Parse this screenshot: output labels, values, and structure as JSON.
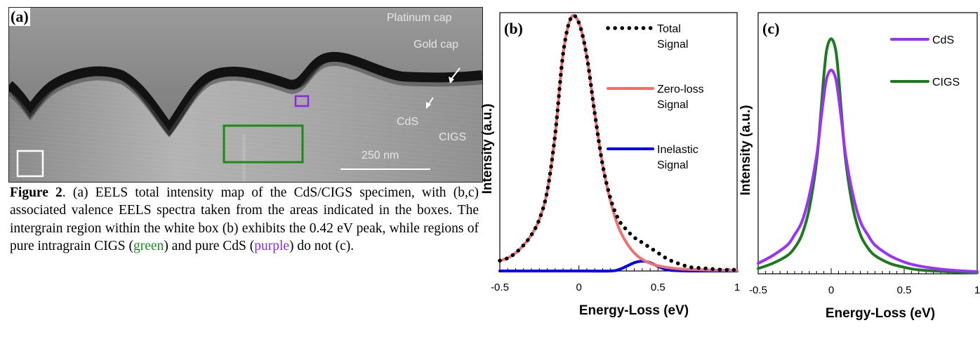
{
  "panel_a": {
    "tag": "(a)",
    "labels": {
      "platinum": "Platinum cap",
      "gold": "Gold cap",
      "cds": "CdS",
      "cigs": "CIGS",
      "scale": "250 nm"
    },
    "box_colors": {
      "white": "#ffffff",
      "green": "#1a8a1a",
      "purple": "#8a2be2"
    }
  },
  "caption": {
    "label": "Figure 2",
    "t1": ". (a) EELS total intensity map of the CdS/CIGS specimen, with (b,c) associated valence EELS spectra taken from the areas indicated in the boxes. The intergrain region within the white box (b) exhibits the 0.42 eV peak, while regions of pure intragrain CIGS (",
    "green_word": "green",
    "t2": ") and pure CdS (",
    "purple_word": "purple",
    "t3": ") do not (c)."
  },
  "chart_data": [
    {
      "type": "line",
      "panel": "(b)",
      "xlabel": "Energy-Loss (eV)",
      "ylabel": "Intensity (a.u.)",
      "xlim": [
        -0.5,
        1.0
      ],
      "ylim": [
        0,
        1.0
      ],
      "x_ticks": [
        "-0.5",
        "0",
        "0.5",
        "1"
      ],
      "x_tick_values": [
        -0.5,
        0,
        0.5,
        1.0
      ],
      "grid": false,
      "legend_position": "top-right",
      "series": [
        {
          "name": "Total Signal",
          "legend": [
            "Total",
            "Signal"
          ],
          "style": "dotted",
          "color": "#000000",
          "x": [
            -0.5,
            -0.45,
            -0.4,
            -0.35,
            -0.3,
            -0.25,
            -0.2,
            -0.15,
            -0.1,
            -0.05,
            0.0,
            0.05,
            0.1,
            0.15,
            0.2,
            0.25,
            0.3,
            0.35,
            0.4,
            0.45,
            0.5,
            0.55,
            0.6,
            0.65,
            0.7,
            0.8,
            0.9,
            1.0
          ],
          "y": [
            0.04,
            0.05,
            0.07,
            0.1,
            0.14,
            0.2,
            0.31,
            0.53,
            0.84,
            0.98,
            0.96,
            0.83,
            0.61,
            0.41,
            0.28,
            0.2,
            0.16,
            0.13,
            0.11,
            0.09,
            0.07,
            0.05,
            0.035,
            0.025,
            0.015,
            0.01,
            0.005,
            0.005
          ]
        },
        {
          "name": "Zero-loss Signal",
          "legend": [
            "Zero-loss",
            "Signal"
          ],
          "style": "solid",
          "color": "#f07070",
          "x": [
            -0.5,
            -0.45,
            -0.4,
            -0.35,
            -0.3,
            -0.25,
            -0.2,
            -0.15,
            -0.1,
            -0.05,
            0.0,
            0.05,
            0.1,
            0.15,
            0.2,
            0.25,
            0.3,
            0.35,
            0.4,
            0.45,
            0.5,
            0.6,
            0.7,
            0.8,
            0.9,
            1.0
          ],
          "y": [
            0.04,
            0.05,
            0.07,
            0.1,
            0.14,
            0.2,
            0.31,
            0.53,
            0.84,
            0.98,
            0.96,
            0.83,
            0.61,
            0.41,
            0.27,
            0.17,
            0.11,
            0.07,
            0.045,
            0.03,
            0.02,
            0.01,
            0.006,
            0.004,
            0.003,
            0.002
          ]
        },
        {
          "name": "Inelastic Signal",
          "legend": [
            "Inelastic",
            "Signal"
          ],
          "style": "solid",
          "color": "#0000ee",
          "x": [
            -0.5,
            0.0,
            0.2,
            0.25,
            0.3,
            0.35,
            0.4,
            0.45,
            0.5,
            0.55,
            0.6,
            0.7,
            0.8,
            1.0
          ],
          "y": [
            0.0,
            0.0,
            0.0,
            0.005,
            0.018,
            0.032,
            0.038,
            0.032,
            0.018,
            0.006,
            0.002,
            0.0,
            0.0,
            0.0
          ]
        }
      ]
    },
    {
      "type": "line",
      "panel": "(c)",
      "xlabel": "Energy-Loss (eV)",
      "ylabel": "Intensity (a.u.)",
      "xlim": [
        -0.5,
        1.0
      ],
      "ylim": [
        0,
        1.0
      ],
      "x_ticks": [
        "-0.5",
        "0",
        "0.5",
        "1"
      ],
      "x_tick_values": [
        -0.5,
        0,
        0.5,
        1.0
      ],
      "grid": false,
      "legend_position": "top-right",
      "series": [
        {
          "name": "CdS",
          "legend": [
            "CdS"
          ],
          "style": "solid",
          "color": "#9b30ff",
          "x": [
            -0.5,
            -0.4,
            -0.3,
            -0.25,
            -0.2,
            -0.15,
            -0.1,
            -0.07,
            -0.05,
            -0.03,
            0.0,
            0.03,
            0.05,
            0.07,
            0.1,
            0.15,
            0.2,
            0.25,
            0.3,
            0.4,
            0.5,
            0.6,
            0.8,
            1.0
          ],
          "y": [
            0.04,
            0.07,
            0.11,
            0.15,
            0.2,
            0.3,
            0.45,
            0.59,
            0.68,
            0.75,
            0.78,
            0.75,
            0.68,
            0.59,
            0.45,
            0.3,
            0.2,
            0.15,
            0.11,
            0.07,
            0.045,
            0.03,
            0.015,
            0.008
          ]
        },
        {
          "name": "CIGS",
          "legend": [
            "CIGS"
          ],
          "style": "solid",
          "color": "#1f7a1f",
          "x": [
            -0.5,
            -0.4,
            -0.3,
            -0.25,
            -0.2,
            -0.15,
            -0.1,
            -0.07,
            -0.05,
            -0.03,
            0.0,
            0.03,
            0.05,
            0.07,
            0.1,
            0.15,
            0.2,
            0.25,
            0.3,
            0.4,
            0.5,
            0.6,
            0.8,
            1.0
          ],
          "y": [
            0.02,
            0.04,
            0.07,
            0.1,
            0.15,
            0.25,
            0.43,
            0.62,
            0.76,
            0.86,
            0.9,
            0.86,
            0.76,
            0.62,
            0.43,
            0.25,
            0.15,
            0.1,
            0.07,
            0.04,
            0.025,
            0.015,
            0.008,
            0.004
          ]
        }
      ]
    }
  ]
}
